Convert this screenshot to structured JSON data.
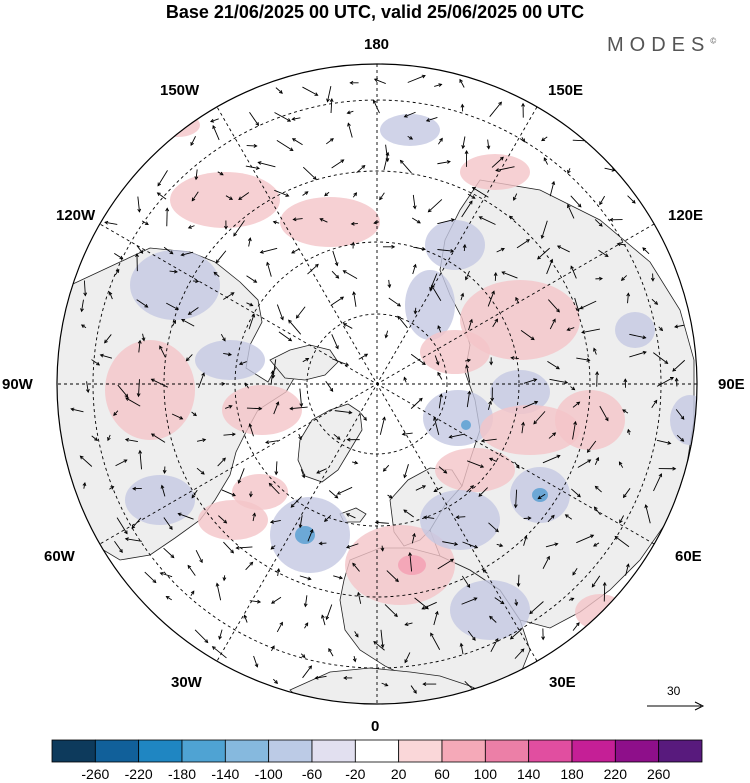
{
  "title": "Base 21/06/2025 00 UTC, valid 25/06/2025 00 UTC",
  "brand": "MODES",
  "brand_mark": "©",
  "longitude_labels": {
    "n180": "180",
    "w150": "150W",
    "e150": "150E",
    "w120": "120W",
    "e120": "120E",
    "w90": "90W",
    "e90": "90E",
    "w60": "60W",
    "e60": "60E",
    "w30": "30W",
    "e30": "30E",
    "s0": "0"
  },
  "reference_vector": {
    "value": "30"
  },
  "colorbar": {
    "ticks": [
      "-260",
      "-220",
      "-180",
      "-140",
      "-100",
      "-60",
      "-20",
      "20",
      "60",
      "100",
      "140",
      "180",
      "220",
      "260"
    ],
    "colors": [
      "#0d3a5c",
      "#11609a",
      "#1f86c2",
      "#4fa3d3",
      "#86b9de",
      "#bccbe6",
      "#e2e0f0",
      "#ffffff",
      "#fad7d9",
      "#f5a9b8",
      "#ec7fa7",
      "#e14ea0",
      "#c51f96",
      "#8e0f8a",
      "#581a7d"
    ]
  },
  "colors": {
    "land": "#eeeeee",
    "positive": "#f4c4c8",
    "negative": "#c4c8e2",
    "grid": "#000000"
  }
}
